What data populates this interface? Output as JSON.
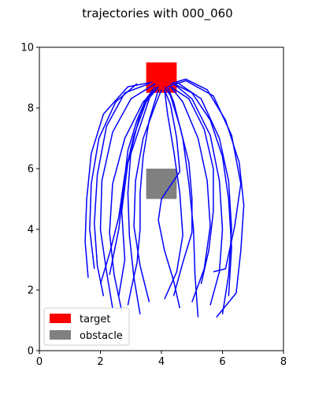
{
  "chart_data": {
    "type": "line",
    "title": "trajectories with 000_060",
    "xlabel": "",
    "ylabel": "",
    "xlim": [
      0,
      8
    ],
    "ylim": [
      0,
      10
    ],
    "xticks": [
      "0",
      "2",
      "4",
      "6",
      "8"
    ],
    "yticks": [
      "0",
      "2",
      "4",
      "6",
      "8",
      "10"
    ],
    "grid": false,
    "legend_position": "lower-left",
    "legend": [
      {
        "label": "target",
        "color": "#ff0000"
      },
      {
        "label": "obstacle",
        "color": "#808080"
      }
    ],
    "target": {
      "x0": 3.5,
      "y0": 8.5,
      "x1": 4.5,
      "y1": 9.5,
      "color": "#ff0000"
    },
    "obstacle": {
      "x0": 3.5,
      "y0": 5.0,
      "x1": 4.5,
      "y1": 6.0,
      "color": "#808080"
    },
    "trajectory_color": "#0000ff",
    "series": [
      {
        "points": [
          [
            2.1,
            1.8
          ],
          [
            1.9,
            2.8
          ],
          [
            1.8,
            4.2
          ],
          [
            1.9,
            5.8
          ],
          [
            2.2,
            7.4
          ],
          [
            2.8,
            8.5
          ],
          [
            3.6,
            8.8
          ]
        ]
      },
      {
        "points": [
          [
            1.6,
            2.4
          ],
          [
            1.5,
            3.6
          ],
          [
            1.55,
            5.0
          ],
          [
            1.7,
            6.5
          ],
          [
            2.1,
            7.8
          ],
          [
            2.9,
            8.7
          ],
          [
            3.7,
            8.85
          ]
        ]
      },
      {
        "points": [
          [
            1.8,
            2.7
          ],
          [
            1.65,
            4.0
          ],
          [
            1.7,
            5.5
          ],
          [
            1.95,
            7.0
          ],
          [
            2.5,
            8.2
          ],
          [
            3.2,
            8.8
          ]
        ]
      },
      {
        "points": [
          [
            2.4,
            1.4
          ],
          [
            2.2,
            2.6
          ],
          [
            2.0,
            4.0
          ],
          [
            2.05,
            5.6
          ],
          [
            2.4,
            7.2
          ],
          [
            3.0,
            8.3
          ],
          [
            3.8,
            8.8
          ]
        ]
      },
      {
        "points": [
          [
            2.7,
            1.3
          ],
          [
            2.45,
            2.5
          ],
          [
            2.3,
            3.9
          ],
          [
            2.4,
            5.5
          ],
          [
            2.8,
            7.0
          ],
          [
            3.4,
            8.2
          ],
          [
            3.9,
            8.7
          ]
        ]
      },
      {
        "points": [
          [
            2.0,
            2.2
          ],
          [
            2.3,
            3.2
          ],
          [
            2.6,
            4.4
          ],
          [
            2.8,
            5.8
          ],
          [
            3.1,
            7.1
          ],
          [
            3.5,
            8.2
          ],
          [
            3.9,
            8.7
          ]
        ]
      },
      {
        "points": [
          [
            2.6,
            1.8
          ],
          [
            2.8,
            3.0
          ],
          [
            2.7,
            4.6
          ],
          [
            2.9,
            6.2
          ],
          [
            3.3,
            7.4
          ],
          [
            3.6,
            8.3
          ]
        ]
      },
      {
        "points": [
          [
            3.3,
            1.2
          ],
          [
            3.1,
            2.4
          ],
          [
            2.95,
            3.8
          ],
          [
            2.9,
            5.2
          ],
          [
            3.0,
            6.6
          ],
          [
            3.3,
            7.8
          ],
          [
            3.7,
            8.6
          ]
        ]
      },
      {
        "points": [
          [
            3.6,
            1.6
          ],
          [
            3.3,
            2.8
          ],
          [
            3.1,
            4.1
          ],
          [
            3.15,
            5.6
          ],
          [
            3.4,
            7.0
          ],
          [
            3.8,
            8.1
          ],
          [
            4.0,
            8.6
          ]
        ]
      },
      {
        "points": [
          [
            4.1,
            1.7
          ],
          [
            4.5,
            2.6
          ],
          [
            4.7,
            3.8
          ],
          [
            4.6,
            5.2
          ],
          [
            4.4,
            6.6
          ],
          [
            4.2,
            7.8
          ],
          [
            4.1,
            8.6
          ]
        ]
      },
      {
        "points": [
          [
            4.6,
            1.4
          ],
          [
            4.4,
            2.3
          ],
          [
            4.1,
            3.3
          ],
          [
            3.9,
            4.3
          ],
          [
            4.0,
            5.0
          ],
          [
            4.6,
            5.9
          ],
          [
            4.5,
            7.0
          ],
          [
            4.3,
            8.1
          ],
          [
            4.1,
            8.6
          ]
        ]
      },
      {
        "points": [
          [
            5.2,
            1.1
          ],
          [
            5.1,
            2.5
          ],
          [
            5.05,
            4.0
          ],
          [
            4.9,
            5.5
          ],
          [
            4.7,
            7.0
          ],
          [
            4.4,
            8.2
          ],
          [
            4.2,
            8.7
          ]
        ]
      },
      {
        "points": [
          [
            5.0,
            1.6
          ],
          [
            5.4,
            2.7
          ],
          [
            5.6,
            4.1
          ],
          [
            5.5,
            5.6
          ],
          [
            5.2,
            7.0
          ],
          [
            4.7,
            8.2
          ],
          [
            4.3,
            8.7
          ]
        ]
      },
      {
        "points": [
          [
            5.6,
            1.5
          ],
          [
            5.9,
            2.6
          ],
          [
            6.0,
            4.0
          ],
          [
            5.9,
            5.6
          ],
          [
            5.6,
            7.1
          ],
          [
            5.0,
            8.3
          ],
          [
            4.4,
            8.8
          ]
        ]
      },
      {
        "points": [
          [
            6.0,
            1.2
          ],
          [
            6.2,
            2.5
          ],
          [
            6.3,
            4.0
          ],
          [
            6.2,
            5.6
          ],
          [
            5.9,
            7.0
          ],
          [
            5.3,
            8.3
          ],
          [
            4.5,
            8.85
          ]
        ]
      },
      {
        "points": [
          [
            5.7,
            2.6
          ],
          [
            6.1,
            2.7
          ],
          [
            6.4,
            4.1
          ],
          [
            6.6,
            5.5
          ],
          [
            6.3,
            7.1
          ],
          [
            5.7,
            8.4
          ],
          [
            4.8,
            8.9
          ],
          [
            4.2,
            8.7
          ]
        ]
      },
      {
        "points": [
          [
            5.8,
            1.1
          ],
          [
            6.45,
            1.9
          ],
          [
            6.6,
            3.3
          ],
          [
            6.7,
            4.8
          ],
          [
            6.55,
            6.2
          ],
          [
            6.1,
            7.6
          ],
          [
            5.5,
            8.6
          ],
          [
            4.8,
            8.95
          ],
          [
            4.3,
            8.8
          ]
        ]
      },
      {
        "points": [
          [
            6.2,
            1.8
          ],
          [
            6.3,
            3.4
          ],
          [
            6.2,
            5.0
          ],
          [
            6.0,
            6.4
          ],
          [
            5.6,
            7.6
          ],
          [
            5.0,
            8.5
          ],
          [
            4.4,
            8.8
          ]
        ]
      },
      {
        "points": [
          [
            2.9,
            1.5
          ],
          [
            3.0,
            2.0
          ],
          [
            3.2,
            2.9
          ],
          [
            3.3,
            4.0
          ],
          [
            3.3,
            5.2
          ],
          [
            3.4,
            6.4
          ],
          [
            3.6,
            7.6
          ],
          [
            3.9,
            8.6
          ]
        ]
      },
      {
        "points": [
          [
            4.4,
            1.8
          ],
          [
            4.7,
            2.9
          ],
          [
            5.0,
            3.9
          ],
          [
            5.0,
            5.0
          ],
          [
            4.9,
            6.2
          ],
          [
            4.6,
            7.4
          ],
          [
            4.3,
            8.4
          ],
          [
            4.1,
            8.7
          ]
        ]
      },
      {
        "points": [
          [
            2.3,
            2.5
          ],
          [
            2.6,
            4.0
          ],
          [
            2.75,
            5.3
          ],
          [
            2.9,
            6.6
          ],
          [
            3.2,
            7.6
          ],
          [
            3.5,
            8.3
          ],
          [
            3.8,
            8.7
          ]
        ]
      },
      {
        "points": [
          [
            5.3,
            2.2
          ],
          [
            5.55,
            3.3
          ],
          [
            5.7,
            4.6
          ],
          [
            5.7,
            6.0
          ],
          [
            5.4,
            7.3
          ],
          [
            4.9,
            8.3
          ],
          [
            4.3,
            8.7
          ]
        ]
      }
    ]
  }
}
